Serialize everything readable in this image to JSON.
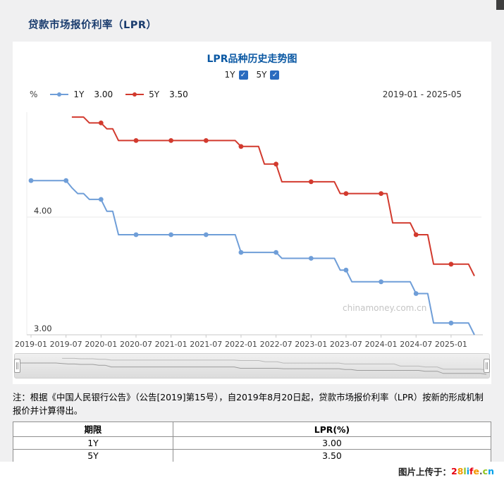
{
  "page": {
    "title": "贷款市场报价利率（LPR）"
  },
  "chart": {
    "title": "LPR品种历史走势图",
    "unit": "%",
    "range": "2019-01 - 2025-05",
    "toggles": [
      {
        "label": "1Y",
        "checked": true
      },
      {
        "label": "5Y",
        "checked": true
      }
    ],
    "legend": [
      {
        "label": "1Y",
        "value": "3.00"
      },
      {
        "label": "5Y",
        "value": "3.50"
      }
    ],
    "watermark": "chinamoney.com.cn"
  },
  "chart_data": {
    "type": "line",
    "title": "LPR品种历史走势图",
    "x_start": "2019-01",
    "x_end": "2025-05",
    "x_freq": "monthly",
    "x_tick_labels": [
      "2019-01",
      "2019-07",
      "2020-01",
      "2020-07",
      "2021-01",
      "2021-07",
      "2022-01",
      "2022-07",
      "2023-01",
      "2023-07",
      "2024-01",
      "2024-07",
      "2025-01"
    ],
    "y_ticks": [
      {
        "value": 3.0,
        "label": "3.00"
      },
      {
        "value": 4.0,
        "label": "4.00"
      }
    ],
    "ylim": [
      2.95,
      4.95
    ],
    "grid": true,
    "legend_position": "top-left",
    "series": [
      {
        "name": "1Y",
        "color": "#6f9ed8",
        "latest": "3.00",
        "monthly_values": [
          4.31,
          4.31,
          4.31,
          4.31,
          4.31,
          4.31,
          4.31,
          4.25,
          4.2,
          4.2,
          4.15,
          4.15,
          4.15,
          4.05,
          4.05,
          3.85,
          3.85,
          3.85,
          3.85,
          3.85,
          3.85,
          3.85,
          3.85,
          3.85,
          3.85,
          3.85,
          3.85,
          3.85,
          3.85,
          3.85,
          3.85,
          3.85,
          3.85,
          3.85,
          3.85,
          3.85,
          3.7,
          3.7,
          3.7,
          3.7,
          3.7,
          3.7,
          3.7,
          3.65,
          3.65,
          3.65,
          3.65,
          3.65,
          3.65,
          3.65,
          3.65,
          3.65,
          3.65,
          3.55,
          3.55,
          3.45,
          3.45,
          3.45,
          3.45,
          3.45,
          3.45,
          3.45,
          3.45,
          3.45,
          3.45,
          3.45,
          3.35,
          3.35,
          3.35,
          3.1,
          3.1,
          3.1,
          3.1,
          3.1,
          3.1,
          3.1,
          3.0
        ]
      },
      {
        "name": "5Y",
        "color": "#d23a2e",
        "latest": "3.50",
        "monthly_values": [
          null,
          null,
          null,
          null,
          null,
          null,
          null,
          4.85,
          4.85,
          4.85,
          4.8,
          4.8,
          4.8,
          4.75,
          4.75,
          4.65,
          4.65,
          4.65,
          4.65,
          4.65,
          4.65,
          4.65,
          4.65,
          4.65,
          4.65,
          4.65,
          4.65,
          4.65,
          4.65,
          4.65,
          4.65,
          4.65,
          4.65,
          4.65,
          4.65,
          4.65,
          4.6,
          4.6,
          4.6,
          4.6,
          4.45,
          4.45,
          4.45,
          4.3,
          4.3,
          4.3,
          4.3,
          4.3,
          4.3,
          4.3,
          4.3,
          4.3,
          4.3,
          4.2,
          4.2,
          4.2,
          4.2,
          4.2,
          4.2,
          4.2,
          4.2,
          4.2,
          3.95,
          3.95,
          3.95,
          3.95,
          3.85,
          3.85,
          3.85,
          3.6,
          3.6,
          3.6,
          3.6,
          3.6,
          3.6,
          3.6,
          3.5
        ]
      }
    ]
  },
  "note": "注：根据《中国人民银行公告》（公告[2019]第15号），自2019年8月20日起，贷款市场报价利率（LPR）按新的形成机制报价并计算得出。",
  "table": {
    "headers": [
      "期限",
      "LPR(%)"
    ],
    "rows": [
      [
        "1Y",
        "3.00"
      ],
      [
        "5Y",
        "3.50"
      ]
    ]
  },
  "footer": {
    "prefix": "图片上传于：",
    "site": "28life.cn",
    "site_colors": [
      "#e60012",
      "#f39800",
      "#8fc31f",
      "#00a0e9",
      "#e60012",
      "#f39800",
      "#555555",
      "#8fc31f",
      "#00a0e9"
    ]
  }
}
